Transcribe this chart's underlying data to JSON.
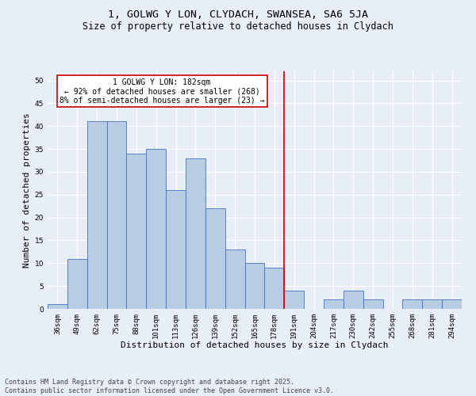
{
  "title": "1, GOLWG Y LON, CLYDACH, SWANSEA, SA6 5JA",
  "subtitle": "Size of property relative to detached houses in Clydach",
  "xlabel": "Distribution of detached houses by size in Clydach",
  "ylabel": "Number of detached properties",
  "categories": [
    "36sqm",
    "49sqm",
    "62sqm",
    "75sqm",
    "88sqm",
    "101sqm",
    "113sqm",
    "126sqm",
    "139sqm",
    "152sqm",
    "165sqm",
    "178sqm",
    "191sqm",
    "204sqm",
    "217sqm",
    "230sqm",
    "242sqm",
    "255sqm",
    "268sqm",
    "281sqm",
    "294sqm"
  ],
  "values": [
    1,
    11,
    41,
    41,
    34,
    35,
    26,
    33,
    22,
    13,
    10,
    9,
    4,
    0,
    2,
    4,
    2,
    0,
    2,
    2,
    2
  ],
  "bar_color": "#b8cce4",
  "bar_edge_color": "#4472c4",
  "vline_x": 11.5,
  "vline_color": "#cc0000",
  "annotation_title": "1 GOLWG Y LON: 182sqm",
  "annotation_line1": "← 92% of detached houses are smaller (268)",
  "annotation_line2": "8% of semi-detached houses are larger (23) →",
  "annotation_box_color": "#cc0000",
  "ylim": [
    0,
    52
  ],
  "yticks": [
    0,
    5,
    10,
    15,
    20,
    25,
    30,
    35,
    40,
    45,
    50
  ],
  "background_color": "#e8eef8",
  "grid_color": "#ffffff",
  "footer": "Contains HM Land Registry data © Crown copyright and database right 2025.\nContains public sector information licensed under the Open Government Licence v3.0.",
  "title_fontsize": 9.5,
  "subtitle_fontsize": 8.5,
  "axis_label_fontsize": 8,
  "tick_fontsize": 6.5,
  "annotation_fontsize": 7,
  "footer_fontsize": 6
}
